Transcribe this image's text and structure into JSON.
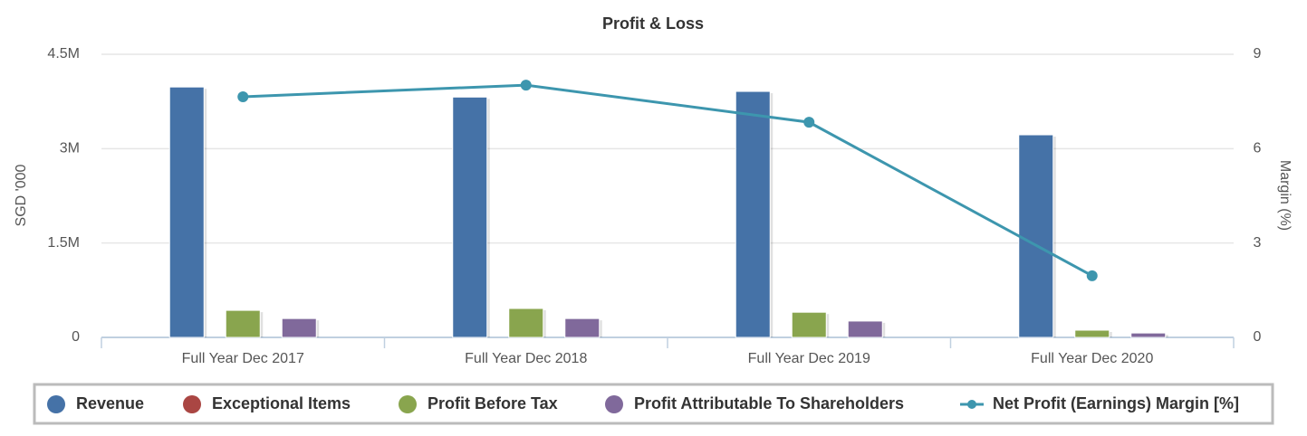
{
  "chart_data": {
    "type": "bar",
    "title": "Profit & Loss",
    "y_label": "SGD '000",
    "y2_label": "Margin (%)",
    "categories": [
      "Full Year Dec 2017",
      "Full Year Dec 2018",
      "Full Year Dec 2019",
      "Full Year Dec 2020"
    ],
    "series": [
      {
        "name": "Revenue",
        "color": "#4572a7",
        "values": [
          3980000,
          3820000,
          3910000,
          3220000
        ]
      },
      {
        "name": "Exceptional Items",
        "color": "#aa4643",
        "values": [
          0,
          0,
          0,
          0
        ]
      },
      {
        "name": "Profit Before Tax",
        "color": "#89a54e",
        "values": [
          430000,
          460000,
          400000,
          115000
        ]
      },
      {
        "name": "Profit Attributable To Shareholders",
        "color": "#80699b",
        "values": [
          300000,
          300000,
          260000,
          70000
        ]
      },
      {
        "name": "Net Profit (Earnings) Margin [%]",
        "color": "#3d96ae",
        "type": "line",
        "axis": "y2",
        "values": [
          7.65,
          8.02,
          6.84,
          1.96
        ]
      }
    ],
    "ylim": [
      0,
      4500000
    ],
    "yticks": [
      0,
      {
        "value": 1500000,
        "label": "1.5M"
      },
      {
        "value": 3000000,
        "label": "3M"
      },
      {
        "value": 4500000,
        "label": "4.5M"
      }
    ],
    "y2lim": [
      0,
      9
    ],
    "y2ticks": [
      0,
      3,
      6,
      9
    ],
    "grid": true
  }
}
